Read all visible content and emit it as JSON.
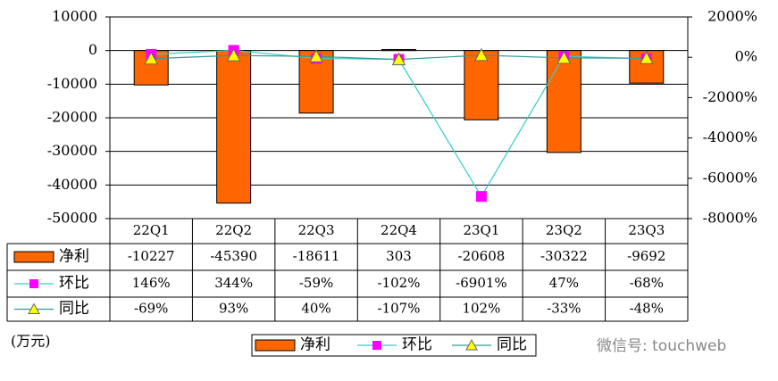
{
  "chart_data": {
    "type": "bar-line-table",
    "categories": [
      "22Q1",
      "22Q2",
      "22Q3",
      "22Q4",
      "23Q1",
      "23Q2",
      "23Q3"
    ],
    "series": [
      {
        "name": "净利",
        "color": "#ff6600",
        "values": [
          -10227,
          -45390,
          -18611,
          303,
          -20608,
          -30322,
          -9692
        ]
      },
      {
        "name": "环比",
        "color": "#ff00ff",
        "line_color": "#33cccc",
        "axis": "y2",
        "values": [
          146,
          344,
          -59,
          -102,
          -6901,
          47,
          -68
        ],
        "value_labels": [
          "146%",
          "344%",
          "-59%",
          "-102%",
          "-6901%",
          "47%",
          "-68%"
        ]
      },
      {
        "name": "同比",
        "color": "#ffff00",
        "line_color": "#339999",
        "axis": "y2",
        "values": [
          -69,
          93,
          40,
          -107,
          102,
          -33,
          -48
        ],
        "value_labels": [
          "-69%",
          "93%",
          "40%",
          "-107%",
          "102%",
          "-33%",
          "-48%"
        ]
      }
    ],
    "ylim": [
      -50000,
      10000
    ],
    "yticks": [
      10000,
      0,
      -10000,
      -20000,
      -30000,
      -40000,
      -50000
    ],
    "y2lim": [
      -8000,
      2000
    ],
    "y2ticks": [
      {
        "value": 2000,
        "label": "2000%"
      },
      {
        "value": 0,
        "label": "0%"
      },
      {
        "value": -2000,
        "label": "-2000%"
      },
      {
        "value": -4000,
        "label": "-4000%"
      },
      {
        "value": -6000,
        "label": "-6000%"
      },
      {
        "value": -8000,
        "label": "-8000%"
      }
    ],
    "grid": true,
    "unit": "(万元)",
    "watermark": "微信号: touchweb"
  }
}
